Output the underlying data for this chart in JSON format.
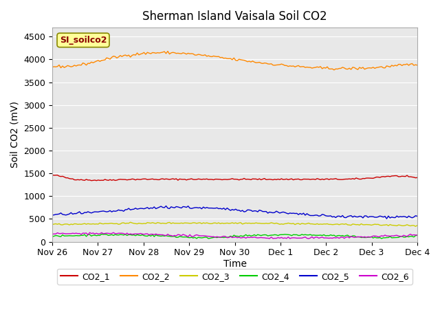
{
  "title": "Sherman Island Vaisala Soil CO2",
  "ylabel": "Soil CO2 (mV)",
  "xlabel": "Time",
  "legend_label": "SI_soilco2",
  "background_color": "#e8e8e8",
  "ylim": [
    0,
    4700
  ],
  "yticks": [
    0,
    500,
    1000,
    1500,
    2000,
    2500,
    3000,
    3500,
    4000,
    4500
  ],
  "xtick_labels": [
    "Nov 26",
    "Nov 27",
    "Nov 28",
    "Nov 29",
    "Nov 30",
    "Dec 1",
    "Dec 2",
    "Dec 3",
    "Dec 4"
  ],
  "series_colors": {
    "CO2_1": "#cc0000",
    "CO2_2": "#ff8800",
    "CO2_3": "#cccc00",
    "CO2_4": "#00cc00",
    "CO2_5": "#0000cc",
    "CO2_6": "#cc00cc"
  },
  "legend_colors": [
    "#cc0000",
    "#ff8800",
    "#cccc00",
    "#00cc00",
    "#0000cc",
    "#cc00cc"
  ],
  "legend_labels": [
    "CO2_1",
    "CO2_2",
    "CO2_3",
    "CO2_4",
    "CO2_5",
    "CO2_6"
  ]
}
